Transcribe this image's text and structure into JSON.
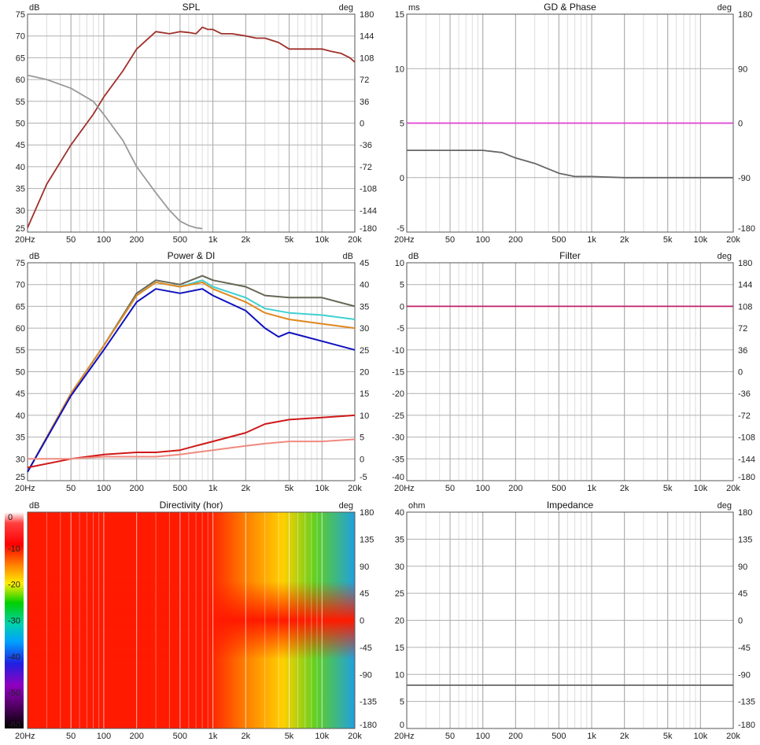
{
  "chart_data": [
    {
      "type": "line",
      "title": "SPL",
      "y_unit": "dB",
      "y2_unit": "deg",
      "x_ticks": [
        "20Hz",
        "50",
        "100",
        "200",
        "500",
        "1k",
        "2k",
        "5k",
        "10k",
        "20k"
      ],
      "x_tick_values": [
        20,
        50,
        100,
        200,
        500,
        1000,
        2000,
        5000,
        10000,
        20000
      ],
      "xscale": "log",
      "xlim": [
        20,
        20000
      ],
      "ylim": [
        25,
        75
      ],
      "y_ticks": [
        "75",
        "70",
        "65",
        "60",
        "55",
        "50",
        "45",
        "40",
        "35",
        "30",
        "25"
      ],
      "y2lim": [
        -180,
        180
      ],
      "y2_ticks": [
        "180",
        "144",
        "108",
        "72",
        "36",
        "0",
        "-36",
        "-72",
        "-108",
        "-144",
        "-180"
      ],
      "grid": true,
      "series": [
        {
          "color": "#a0302a",
          "axis": "y",
          "x": [
            20,
            30,
            50,
            80,
            100,
            150,
            200,
            300,
            400,
            500,
            600,
            700,
            800,
            900,
            1000,
            1200,
            1500,
            2000,
            2500,
            3000,
            4000,
            5000,
            6000,
            8000,
            10000,
            12000,
            15000,
            18000,
            20000
          ],
          "y": [
            26,
            36,
            45,
            52,
            56,
            62,
            67,
            71,
            70.5,
            71,
            70.8,
            70.5,
            72,
            71.5,
            71.5,
            70.5,
            70.5,
            70,
            69.5,
            69.5,
            68.5,
            67,
            67,
            67,
            67,
            66.5,
            66,
            65,
            64
          ]
        },
        {
          "color": "#999999",
          "axis": "y",
          "x": [
            20,
            30,
            50,
            80,
            100,
            150,
            200,
            300,
            400,
            500,
            600,
            700,
            800
          ],
          "y": [
            61,
            60,
            58,
            55,
            52,
            46,
            40,
            34,
            30,
            27.5,
            26.5,
            26,
            25.8
          ]
        }
      ]
    },
    {
      "type": "line",
      "title": "GD & Phase",
      "y_unit": "ms",
      "y2_unit": "deg",
      "x_ticks": [
        "20Hz",
        "50",
        "100",
        "200",
        "500",
        "1k",
        "2k",
        "5k",
        "10k",
        "20k"
      ],
      "x_tick_values": [
        20,
        50,
        100,
        200,
        500,
        1000,
        2000,
        5000,
        10000,
        20000
      ],
      "xscale": "log",
      "xlim": [
        20,
        20000
      ],
      "ylim": [
        -5,
        15
      ],
      "y_ticks": [
        "15",
        "10",
        "5",
        "0",
        "-5"
      ],
      "y2lim": [
        -180,
        180
      ],
      "y2_ticks": [
        "180",
        "90",
        "0",
        "-90",
        "-180"
      ],
      "grid": true,
      "series": [
        {
          "color": "#666666",
          "axis": "y",
          "x": [
            20,
            50,
            100,
            150,
            200,
            300,
            500,
            700,
            1000,
            2000,
            5000,
            10000,
            20000
          ],
          "y": [
            2.5,
            2.5,
            2.5,
            2.3,
            1.8,
            1.3,
            0.4,
            0.1,
            0.1,
            0,
            0,
            0,
            0
          ]
        },
        {
          "color": "#e040d0",
          "axis": "y",
          "x": [
            20,
            20000
          ],
          "y": [
            5,
            5
          ]
        }
      ]
    },
    {
      "type": "line",
      "title": "Power & DI",
      "y_unit": "dB",
      "y2_unit": "dB",
      "x_ticks": [
        "20Hz",
        "50",
        "100",
        "200",
        "500",
        "1k",
        "2k",
        "5k",
        "10k",
        "20k"
      ],
      "x_tick_values": [
        20,
        50,
        100,
        200,
        500,
        1000,
        2000,
        5000,
        10000,
        20000
      ],
      "xscale": "log",
      "xlim": [
        20,
        20000
      ],
      "ylim": [
        25,
        75
      ],
      "y_ticks": [
        "75",
        "70",
        "65",
        "60",
        "55",
        "50",
        "45",
        "40",
        "35",
        "30",
        "25"
      ],
      "y2lim": [
        -5,
        45
      ],
      "y2_ticks": [
        "45",
        "40",
        "35",
        "30",
        "25",
        "20",
        "15",
        "10",
        "5",
        "0",
        "-5"
      ],
      "grid": true,
      "series": [
        {
          "color": "#666655",
          "axis": "y",
          "x": [
            20,
            50,
            100,
            200,
            300,
            500,
            800,
            1000,
            2000,
            3000,
            5000,
            10000,
            20000
          ],
          "y": [
            27,
            45,
            56,
            68,
            71,
            70,
            72,
            71,
            69.5,
            67.5,
            67,
            67,
            65
          ]
        },
        {
          "color": "#40d0d0",
          "axis": "y",
          "x": [
            20,
            50,
            100,
            200,
            300,
            500,
            800,
            1000,
            2000,
            3000,
            5000,
            10000,
            20000
          ],
          "y": [
            27,
            45,
            56,
            67.5,
            70.5,
            69.5,
            71,
            69.5,
            67,
            64.5,
            63.5,
            63,
            62
          ]
        },
        {
          "color": "#e08820",
          "axis": "y",
          "x": [
            20,
            50,
            100,
            200,
            300,
            500,
            800,
            1000,
            2000,
            3000,
            5000,
            10000,
            20000
          ],
          "y": [
            27,
            45,
            56,
            67.5,
            70.5,
            69.5,
            70.5,
            69,
            66,
            63.5,
            62,
            61,
            60
          ]
        },
        {
          "color": "#1010c0",
          "axis": "y",
          "x": [
            20,
            50,
            100,
            200,
            300,
            500,
            800,
            1000,
            2000,
            3000,
            4000,
            5000,
            10000,
            20000
          ],
          "y": [
            27,
            44.5,
            55,
            66,
            69,
            68,
            69,
            67.5,
            64,
            60,
            58,
            59,
            57,
            55
          ]
        },
        {
          "color": "#d01818",
          "axis": "y2",
          "x": [
            20,
            50,
            100,
            200,
            300,
            500,
            700,
            1000,
            2000,
            3000,
            5000,
            10000,
            20000
          ],
          "y": [
            -2,
            0,
            1,
            1.5,
            1.5,
            2,
            3,
            4,
            6,
            8,
            9,
            9.5,
            10
          ]
        },
        {
          "color": "#f08a80",
          "axis": "y2",
          "x": [
            20,
            50,
            100,
            200,
            300,
            500,
            700,
            1000,
            2000,
            3000,
            5000,
            10000,
            20000
          ],
          "y": [
            0,
            0,
            0.5,
            0.5,
            0.5,
            1,
            1.5,
            2,
            3,
            3.5,
            4,
            4,
            4.5
          ]
        }
      ]
    },
    {
      "type": "line",
      "title": "Filter",
      "y_unit": "dB",
      "y2_unit": "deg",
      "x_ticks": [
        "20Hz",
        "50",
        "100",
        "200",
        "500",
        "1k",
        "2k",
        "5k",
        "10k",
        "20k"
      ],
      "x_tick_values": [
        20,
        50,
        100,
        200,
        500,
        1000,
        2000,
        5000,
        10000,
        20000
      ],
      "xscale": "log",
      "xlim": [
        20,
        20000
      ],
      "ylim": [
        -40,
        10
      ],
      "y_ticks": [
        "10",
        "5",
        "0",
        "-5",
        "-10",
        "-15",
        "-20",
        "-25",
        "-30",
        "-35",
        "-40"
      ],
      "y2lim": [
        -180,
        180
      ],
      "y2_ticks": [
        "180",
        "144",
        "108",
        "72",
        "36",
        "0",
        "-36",
        "-72",
        "-108",
        "-144",
        "-180"
      ],
      "grid": true,
      "series": [
        {
          "color": "#c0206a",
          "axis": "y",
          "x": [
            20,
            20000
          ],
          "y": [
            0,
            0
          ]
        }
      ]
    },
    {
      "type": "heatmap",
      "title": "Directivity (hor)",
      "y_unit": "dB",
      "y2_unit": "deg",
      "x_ticks": [
        "20Hz",
        "50",
        "100",
        "200",
        "500",
        "1k",
        "2k",
        "5k",
        "10k",
        "20k"
      ],
      "x_tick_values": [
        20,
        50,
        100,
        200,
        500,
        1000,
        2000,
        5000,
        10000,
        20000
      ],
      "xscale": "log",
      "xlim": [
        20,
        20000
      ],
      "y2lim": [
        -180,
        180
      ],
      "y2_ticks": [
        "180",
        "135",
        "90",
        "45",
        "0",
        "-45",
        "-90",
        "-135",
        "-180"
      ],
      "colorbar_ticks": [
        "0",
        "-10",
        "-20",
        "-30",
        "-40",
        "-50",
        "-60"
      ],
      "colorbar_range": [
        -60,
        0
      ]
    },
    {
      "type": "line",
      "title": "Impedance",
      "y_unit": "ohm",
      "y2_unit": "deg",
      "x_ticks": [
        "20Hz",
        "50",
        "100",
        "200",
        "500",
        "1k",
        "2k",
        "5k",
        "10k",
        "20k"
      ],
      "x_tick_values": [
        20,
        50,
        100,
        200,
        500,
        1000,
        2000,
        5000,
        10000,
        20000
      ],
      "xscale": "log",
      "xlim": [
        20,
        20000
      ],
      "ylim": [
        0,
        40
      ],
      "y_ticks": [
        "40",
        "35",
        "30",
        "25",
        "20",
        "15",
        "10",
        "5",
        "0"
      ],
      "y2lim": [
        -180,
        180
      ],
      "y2_ticks": [
        "180",
        "135",
        "90",
        "45",
        "0",
        "-45",
        "-90",
        "-135",
        "-180"
      ],
      "grid": true,
      "series": [
        {
          "color": "#666666",
          "axis": "y",
          "x": [
            20,
            20000
          ],
          "y": [
            8,
            8
          ]
        }
      ]
    }
  ]
}
